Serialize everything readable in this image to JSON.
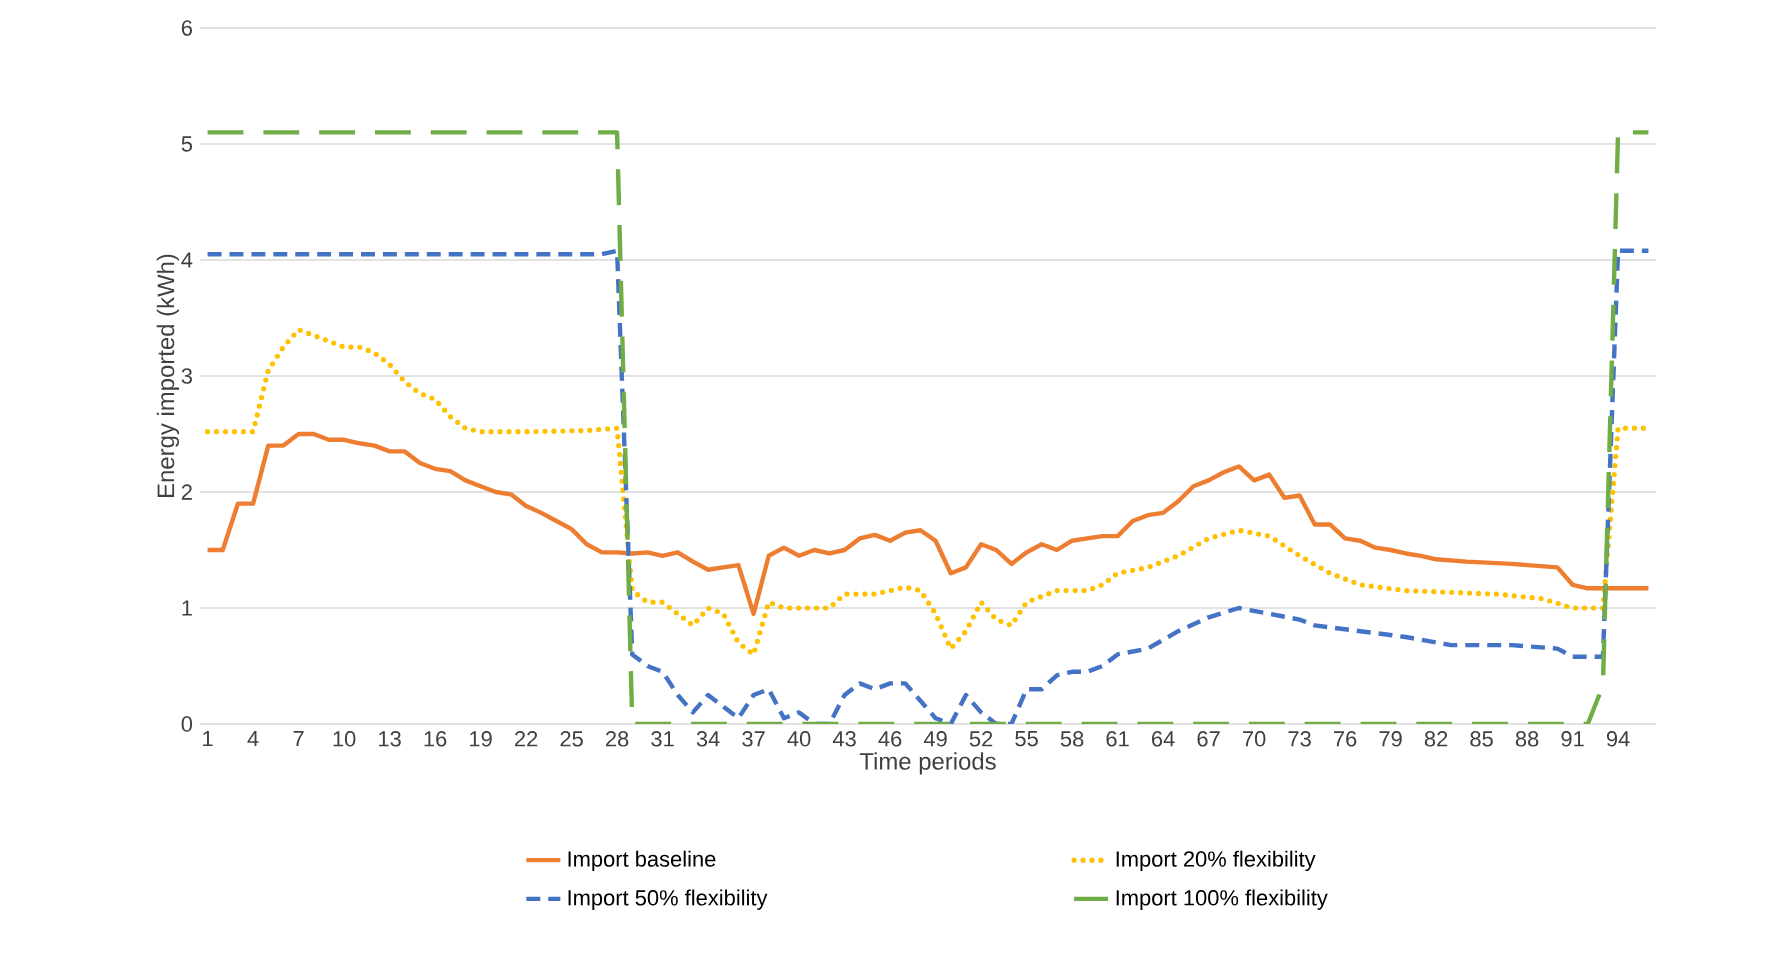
{
  "chart_data": {
    "type": "line",
    "xlabel": "Time periods",
    "ylabel": "Energy imported (kWh)",
    "xlim": [
      0.5,
      96.5
    ],
    "xticks": [
      1,
      4,
      7,
      10,
      13,
      16,
      19,
      22,
      25,
      28,
      31,
      34,
      37,
      40,
      43,
      46,
      49,
      52,
      55,
      58,
      61,
      64,
      67,
      70,
      73,
      76,
      79,
      82,
      85,
      88,
      91,
      94
    ],
    "ylim": [
      0,
      6
    ],
    "yticks": [
      0,
      1,
      2,
      3,
      4,
      5,
      6
    ],
    "grid": "y",
    "legend": "bottom",
    "marker": "none",
    "series": [
      {
        "name": "Import baseline",
        "color": "#ed7d31",
        "line_style": "solid",
        "x": [
          1,
          2,
          3,
          4,
          5,
          6,
          7,
          8,
          9,
          10,
          11,
          12,
          13,
          14,
          15,
          16,
          17,
          18,
          19,
          20,
          21,
          22,
          23,
          24,
          25,
          26,
          27,
          28,
          29,
          30,
          31,
          32,
          33,
          34,
          35,
          36,
          37,
          38,
          39,
          40,
          41,
          42,
          43,
          44,
          45,
          46,
          47,
          48,
          49,
          50,
          51,
          52,
          53,
          54,
          55,
          56,
          57,
          58,
          59,
          60,
          61,
          62,
          63,
          64,
          65,
          66,
          67,
          68,
          69,
          70,
          71,
          72,
          73,
          74,
          75,
          76,
          77,
          78,
          79,
          80,
          81,
          82,
          84,
          87,
          90,
          91,
          92,
          96
        ],
        "values": [
          1.5,
          1.5,
          1.9,
          1.9,
          2.4,
          2.4,
          2.5,
          2.5,
          2.45,
          2.45,
          2.42,
          2.4,
          2.35,
          2.35,
          2.25,
          2.2,
          2.18,
          2.1,
          2.05,
          2.0,
          1.98,
          1.88,
          1.82,
          1.75,
          1.68,
          1.55,
          1.48,
          1.48,
          1.47,
          1.48,
          1.45,
          1.48,
          1.4,
          1.33,
          1.35,
          1.37,
          0.95,
          1.45,
          1.52,
          1.45,
          1.5,
          1.47,
          1.5,
          1.6,
          1.63,
          1.58,
          1.65,
          1.67,
          1.58,
          1.3,
          1.35,
          1.55,
          1.5,
          1.38,
          1.48,
          1.55,
          1.5,
          1.58,
          1.6,
          1.62,
          1.62,
          1.75,
          1.8,
          1.82,
          1.92,
          2.05,
          2.1,
          2.17,
          2.22,
          2.1,
          2.15,
          1.95,
          1.97,
          1.72,
          1.72,
          1.6,
          1.58,
          1.52,
          1.5,
          1.47,
          1.45,
          1.42,
          1.4,
          1.38,
          1.35,
          1.2,
          1.17,
          1.17
        ]
      },
      {
        "name": "Import 20% flexibility",
        "color": "#ffc000",
        "line_style": "dotted",
        "x": [
          1,
          3,
          4,
          5,
          6,
          7,
          8,
          9,
          10,
          11,
          12,
          13,
          14,
          15,
          16,
          17,
          18,
          19,
          22,
          26,
          28,
          29,
          30,
          31,
          32,
          33,
          34,
          35,
          36,
          37,
          38,
          39,
          42,
          43,
          45,
          46,
          47,
          48,
          49,
          50,
          51,
          52,
          53,
          54,
          55,
          56,
          57,
          59,
          60,
          61,
          63,
          65,
          67,
          69,
          71,
          73,
          75,
          77,
          80,
          86,
          89,
          91,
          93,
          94,
          96
        ],
        "values": [
          2.52,
          2.52,
          2.52,
          3.05,
          3.25,
          3.4,
          3.35,
          3.3,
          3.25,
          3.25,
          3.2,
          3.1,
          2.95,
          2.85,
          2.8,
          2.65,
          2.55,
          2.52,
          2.52,
          2.53,
          2.55,
          1.15,
          1.05,
          1.05,
          0.95,
          0.85,
          1.0,
          0.95,
          0.7,
          0.6,
          1.05,
          1.0,
          1.0,
          1.12,
          1.12,
          1.15,
          1.18,
          1.15,
          0.95,
          0.65,
          0.8,
          1.05,
          0.9,
          0.85,
          1.05,
          1.1,
          1.15,
          1.15,
          1.2,
          1.3,
          1.35,
          1.45,
          1.6,
          1.67,
          1.62,
          1.45,
          1.3,
          1.2,
          1.15,
          1.12,
          1.08,
          1.0,
          1.0,
          2.55,
          2.55
        ]
      },
      {
        "name": "Import 50% flexibility",
        "color": "#4472c4",
        "line_style": "dashed",
        "x": [
          1,
          27,
          28,
          29,
          30,
          31,
          32,
          33,
          34,
          35,
          36,
          37,
          38,
          39,
          40,
          41,
          42,
          43,
          44,
          45,
          46,
          47,
          48,
          49,
          50,
          51,
          52,
          53,
          54,
          55,
          56,
          57,
          58,
          59,
          60,
          61,
          63,
          65,
          67,
          69,
          71,
          73,
          74,
          77,
          80,
          83,
          87,
          90,
          91,
          93,
          94,
          96
        ],
        "values": [
          4.05,
          4.05,
          4.08,
          0.6,
          0.5,
          0.45,
          0.25,
          0.1,
          0.25,
          0.15,
          0.05,
          0.25,
          0.3,
          0.05,
          0.1,
          0,
          0,
          0.25,
          0.35,
          0.3,
          0.35,
          0.35,
          0.2,
          0.05,
          0,
          0.25,
          0.1,
          0,
          0,
          0.3,
          0.3,
          0.42,
          0.45,
          0.45,
          0.5,
          0.6,
          0.65,
          0.8,
          0.92,
          1.0,
          0.95,
          0.9,
          0.85,
          0.8,
          0.75,
          0.68,
          0.68,
          0.65,
          0.58,
          0.58,
          4.08,
          4.08
        ]
      },
      {
        "name": "Import 100% flexibility",
        "color": "#70ad47",
        "line_style": "longdash",
        "x": [
          1,
          28,
          29,
          92,
          93,
          94,
          96
        ],
        "values": [
          5.1,
          5.1,
          0,
          0,
          0.33,
          5.1,
          5.1
        ]
      }
    ]
  }
}
